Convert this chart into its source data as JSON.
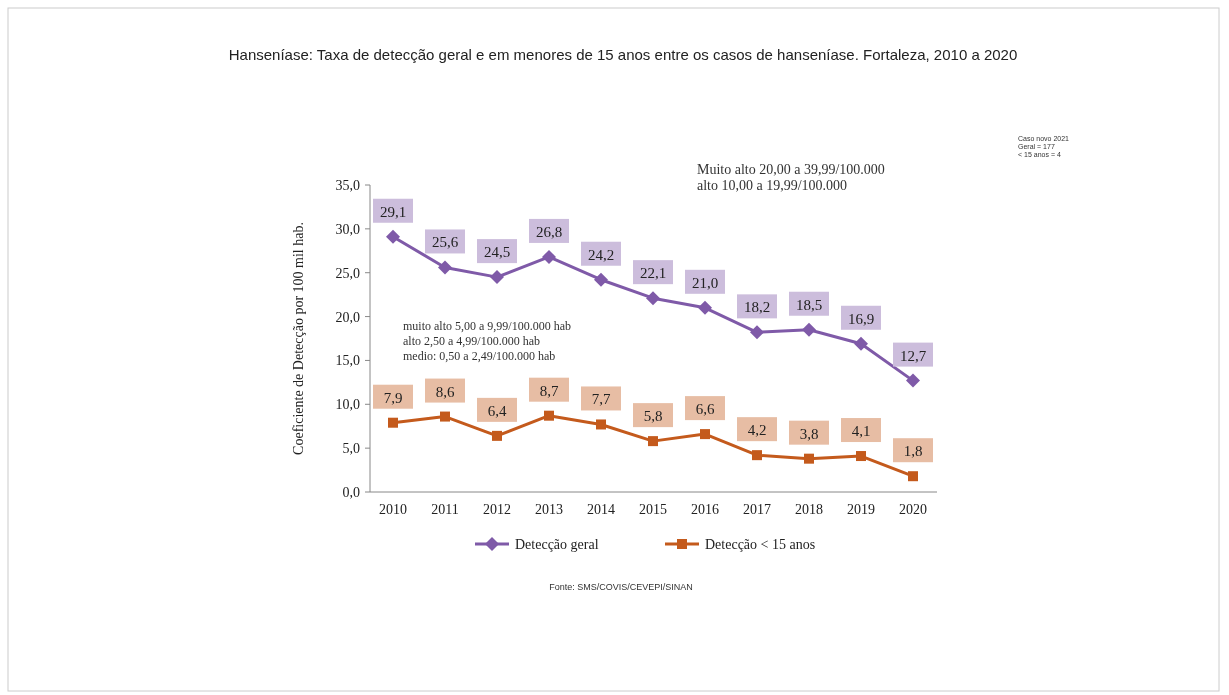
{
  "chart_data": {
    "type": "line",
    "title": "Hanseníase: Taxa de detecção geral e em menores de 15 anos entre os casos de hanseníase.  Fortaleza, 2010 a 2020",
    "ylabel": "Coeficiente de Detecção por 100 mil hab.",
    "categories": [
      "2010",
      "2011",
      "2012",
      "2013",
      "2014",
      "2015",
      "2016",
      "2017",
      "2018",
      "2019",
      "2020"
    ],
    "series": [
      {
        "name": "Detecção geral",
        "color": "#7f5aa8",
        "marker": "diamond",
        "values": [
          29.1,
          25.6,
          24.5,
          26.8,
          24.2,
          22.1,
          21.0,
          18.2,
          18.5,
          16.9,
          12.7
        ],
        "value_labels": [
          "29,1",
          "25,6",
          "24,5",
          "26,8",
          "24,2",
          "22,1",
          "21,0",
          "18,2",
          "18,5",
          "16,9",
          "12,7"
        ]
      },
      {
        "name": "Detecção < 15 anos",
        "color": "#c45a1c",
        "marker": "square",
        "values": [
          7.9,
          8.6,
          6.4,
          8.7,
          7.7,
          5.8,
          6.6,
          4.2,
          3.8,
          4.1,
          1.8
        ],
        "value_labels": [
          "7,9",
          "8,6",
          "6,4",
          "8,7",
          "7,7",
          "5,8",
          "6,6",
          "4,2",
          "3,8",
          "4,1",
          "1,8"
        ]
      }
    ],
    "ylim": [
      0,
      35
    ],
    "yticks": [
      {
        "value": 0,
        "label": "0,0"
      },
      {
        "value": 5,
        "label": "5,0"
      },
      {
        "value": 10,
        "label": "10,0"
      },
      {
        "value": 15,
        "label": "15,0"
      },
      {
        "value": 20,
        "label": "20,0"
      },
      {
        "value": 25,
        "label": "25,0"
      },
      {
        "value": 30,
        "label": "30,0"
      },
      {
        "value": 35,
        "label": "35,0"
      }
    ],
    "legend": "bottom",
    "grid": false,
    "annotations": [
      "Caso novo 2021\nGeral = 177\n< 15 anos = 4",
      "Muito alto 20,00 a 39,99/100.000\nalto 10,00 a 19,99/100.000",
      "muito  alto  5,00  a 9,99/100.000  hab\nalto  2,50  a 4,99/100.000  hab\nmedio:  0,50  a 2,49/100.000  hab",
      "Fonte: SMS/COVIS/CEVEPI/SINAN"
    ]
  }
}
